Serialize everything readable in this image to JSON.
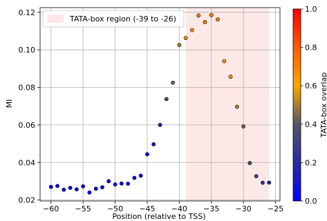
{
  "chart_data": {
    "type": "scatter",
    "xlabel": "Position (relative to TSS)",
    "ylabel": "MI",
    "xlim": [
      -61.7,
      -24.3
    ],
    "ylim": [
      0.0195,
      0.1225
    ],
    "xticks": [
      -60,
      -55,
      -50,
      -45,
      -40,
      -35,
      -30,
      -25
    ],
    "yticks": [
      0.02,
      0.04,
      0.06,
      0.08,
      0.1,
      0.12
    ],
    "xtick_labels": [
      "−60",
      "−55",
      "−50",
      "−45",
      "−40",
      "−35",
      "−30",
      "−25"
    ],
    "ytick_labels": [
      "0.02",
      "0.04",
      "0.06",
      "0.08",
      "0.10",
      "0.12"
    ],
    "grid": true,
    "shaded_region": {
      "label": "TATA-box region (-39 to -26)",
      "x_start": -39,
      "x_end": -26,
      "color": "#fde8e8"
    },
    "legend": {
      "position": "top-left",
      "entries": [
        "TATA-box region (-39 to -26)"
      ]
    },
    "colorbar": {
      "label": "TATA-box overlap",
      "range": [
        0.0,
        1.0
      ],
      "ticks": [
        0.0,
        0.2,
        0.4,
        0.6,
        0.8,
        1.0
      ],
      "tick_labels": [
        "0.0",
        "0.2",
        "0.4",
        "0.6",
        "0.8",
        "1.0"
      ],
      "colormap": [
        "#0000ff",
        "#2c2ca0",
        "#555566",
        "#ffa500",
        "#ff5a00",
        "#ff0000"
      ]
    },
    "points": [
      {
        "x": -60,
        "y": 0.027,
        "overlap": 0.0
      },
      {
        "x": -59,
        "y": 0.0275,
        "overlap": 0.0
      },
      {
        "x": -58,
        "y": 0.0255,
        "overlap": 0.0
      },
      {
        "x": -57,
        "y": 0.0265,
        "overlap": 0.0
      },
      {
        "x": -56,
        "y": 0.0257,
        "overlap": 0.0
      },
      {
        "x": -55,
        "y": 0.0273,
        "overlap": 0.0
      },
      {
        "x": -54,
        "y": 0.024,
        "overlap": 0.0
      },
      {
        "x": -53,
        "y": 0.026,
        "overlap": 0.0
      },
      {
        "x": -52,
        "y": 0.0268,
        "overlap": 0.0
      },
      {
        "x": -51,
        "y": 0.03,
        "overlap": 0.0
      },
      {
        "x": -50,
        "y": 0.0283,
        "overlap": 0.0
      },
      {
        "x": -49,
        "y": 0.0288,
        "overlap": 0.0
      },
      {
        "x": -48,
        "y": 0.0287,
        "overlap": 0.0
      },
      {
        "x": -47,
        "y": 0.0318,
        "overlap": 0.0
      },
      {
        "x": -46,
        "y": 0.033,
        "overlap": 0.0
      },
      {
        "x": -45,
        "y": 0.0444,
        "overlap": 0.0
      },
      {
        "x": -44,
        "y": 0.0497,
        "overlap": 0.07
      },
      {
        "x": -43,
        "y": 0.06,
        "overlap": 0.14
      },
      {
        "x": -42,
        "y": 0.0738,
        "overlap": 0.36
      },
      {
        "x": -41,
        "y": 0.0825,
        "overlap": 0.43
      },
      {
        "x": -40,
        "y": 0.1026,
        "overlap": 0.5
      },
      {
        "x": -39,
        "y": 0.1063,
        "overlap": 0.57
      },
      {
        "x": -38,
        "y": 0.1105,
        "overlap": 0.64
      },
      {
        "x": -37,
        "y": 0.1183,
        "overlap": 0.71
      },
      {
        "x": -36,
        "y": 0.1148,
        "overlap": 0.71
      },
      {
        "x": -35,
        "y": 0.1185,
        "overlap": 0.71
      },
      {
        "x": -34,
        "y": 0.1162,
        "overlap": 0.71
      },
      {
        "x": -33,
        "y": 0.094,
        "overlap": 0.64
      },
      {
        "x": -32,
        "y": 0.0857,
        "overlap": 0.57
      },
      {
        "x": -31,
        "y": 0.0697,
        "overlap": 0.5
      },
      {
        "x": -30,
        "y": 0.0592,
        "overlap": 0.43
      },
      {
        "x": -29,
        "y": 0.0397,
        "overlap": 0.36
      },
      {
        "x": -28,
        "y": 0.0327,
        "overlap": 0.29
      },
      {
        "x": -27,
        "y": 0.0292,
        "overlap": 0.21
      },
      {
        "x": -26,
        "y": 0.0293,
        "overlap": 0.14
      }
    ]
  }
}
